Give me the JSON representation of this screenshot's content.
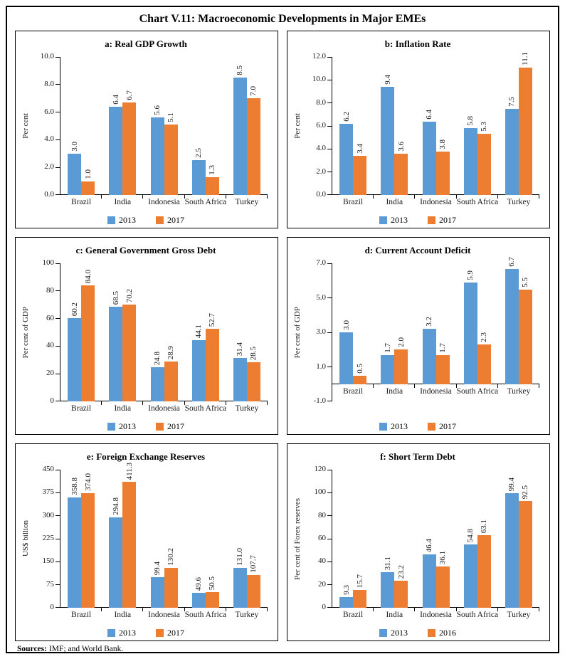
{
  "page_title": "Chart V.11: Macroeconomic Developments in Major EMEs",
  "footer": {
    "label": "Sources:",
    "text": "IMF; and World Bank."
  },
  "colors": {
    "series_colors": [
      "#5B9BD5",
      "#ED7D31"
    ],
    "axis": "#000000",
    "text": "#1a1a1a"
  },
  "chart_data": [
    {
      "id": "a",
      "type": "bar",
      "title": "a: Real GDP Growth",
      "ylabel": "Per cent",
      "ylim": [
        0,
        10
      ],
      "ytick_step": 2,
      "ytick_decimals": 1,
      "grid": false,
      "legend_position": "bottom",
      "categories": [
        "Brazil",
        "India",
        "Indonesia",
        "South Africa",
        "Turkey"
      ],
      "series": [
        {
          "name": "2013",
          "values": [
            3.0,
            6.4,
            5.6,
            2.5,
            8.5
          ]
        },
        {
          "name": "2017",
          "values": [
            1.0,
            6.7,
            5.1,
            1.3,
            7.0
          ]
        }
      ]
    },
    {
      "id": "b",
      "type": "bar",
      "title": "b: Inflation Rate",
      "ylabel": "Per cent",
      "ylim": [
        0,
        12
      ],
      "ytick_step": 2,
      "ytick_decimals": 1,
      "grid": false,
      "legend_position": "bottom",
      "categories": [
        "Brazil",
        "India",
        "Indonesia",
        "South Africa",
        "Turkey"
      ],
      "series": [
        {
          "name": "2013",
          "values": [
            6.2,
            9.4,
            6.4,
            5.8,
            7.5
          ]
        },
        {
          "name": "2017",
          "values": [
            3.4,
            3.6,
            3.8,
            5.3,
            11.1
          ]
        }
      ]
    },
    {
      "id": "c",
      "type": "bar",
      "title": "c: General Government Gross Debt",
      "ylabel": "Per cent of GDP",
      "ylim": [
        0,
        100
      ],
      "ytick_step": 20,
      "ytick_decimals": 0,
      "grid": false,
      "legend_position": "bottom",
      "categories": [
        "Brazil",
        "India",
        "Indonesia",
        "South Africa",
        "Turkey"
      ],
      "series": [
        {
          "name": "2013",
          "values": [
            60.2,
            68.5,
            24.8,
            44.1,
            31.4
          ]
        },
        {
          "name": "2017",
          "values": [
            84.0,
            70.2,
            28.9,
            52.7,
            28.5
          ]
        }
      ]
    },
    {
      "id": "d",
      "type": "bar",
      "title": "d: Current Account Deficit",
      "ylabel": "Per cent of GDP",
      "ylim": [
        -1,
        7
      ],
      "ytick_step": 2,
      "ytick_decimals": 1,
      "grid": false,
      "legend_position": "bottom",
      "categories": [
        "Brazil",
        "India",
        "Indonesia",
        "South Africa",
        "Turkey"
      ],
      "series": [
        {
          "name": "2013",
          "values": [
            3.0,
            1.7,
            3.2,
            5.9,
            6.7
          ]
        },
        {
          "name": "2017",
          "values": [
            0.5,
            2.0,
            1.7,
            2.3,
            5.5
          ]
        }
      ]
    },
    {
      "id": "e",
      "type": "bar",
      "title": "e: Foreign Exchange Reserves",
      "ylabel": "US$ billion",
      "ylim": [
        0,
        450
      ],
      "ytick_step": 75,
      "ytick_decimals": 0,
      "grid": false,
      "legend_position": "bottom",
      "categories": [
        "Brazil",
        "India",
        "Indonesia",
        "South Africa",
        "Turkey"
      ],
      "series": [
        {
          "name": "2013",
          "values": [
            358.8,
            294.8,
            99.4,
            49.6,
            131.0
          ]
        },
        {
          "name": "2017",
          "values": [
            374.0,
            411.3,
            130.2,
            50.5,
            107.7
          ]
        }
      ]
    },
    {
      "id": "f",
      "type": "bar",
      "title": "f: Short Term Debt",
      "ylabel": "Per cent of Forex reserves",
      "ylim": [
        0,
        120
      ],
      "ytick_step": 20,
      "ytick_decimals": 0,
      "grid": false,
      "legend_position": "bottom",
      "categories": [
        "Brazil",
        "India",
        "Indonesia",
        "South Africa",
        "Turkey"
      ],
      "series": [
        {
          "name": "2013",
          "values": [
            9.3,
            31.1,
            46.4,
            54.8,
            99.4
          ]
        },
        {
          "name": "2016",
          "values": [
            15.7,
            23.2,
            36.1,
            63.1,
            92.5
          ]
        }
      ]
    }
  ]
}
